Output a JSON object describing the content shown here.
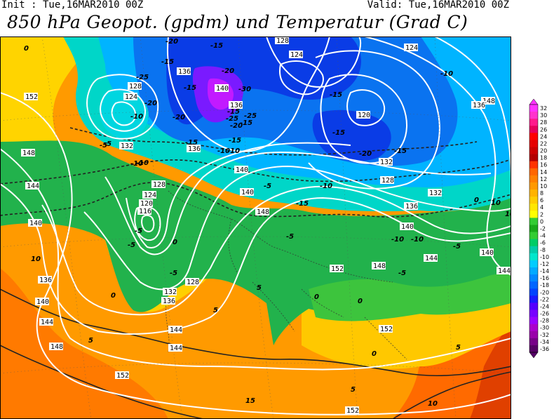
{
  "header": {
    "init": "Init : Tue,16MAR2010 00Z",
    "valid": "Valid: Tue,16MAR2010 00Z",
    "title": "850 hPa Geopot. (gpdm) und Temperatur (Grad C)"
  },
  "colorbar": {
    "levels": [
      32,
      30,
      28,
      26,
      24,
      22,
      20,
      18,
      16,
      14,
      12,
      10,
      8,
      6,
      4,
      2,
      0,
      -2,
      -4,
      -6,
      -8,
      -10,
      -12,
      -14,
      -16,
      -18,
      -20,
      -22,
      -24,
      -26,
      -28,
      -30,
      -32,
      -34,
      -36
    ],
    "labels": [
      "32",
      "30",
      "28",
      "26",
      "24",
      "22",
      "20",
      "18",
      "16",
      "14",
      "12",
      "10",
      "8",
      "6",
      "4",
      "2",
      "0",
      "-2",
      "-4",
      "-6",
      "-8",
      "-10",
      "-12",
      "-14",
      "-16",
      "-18",
      "-20",
      "-22",
      "-24",
      "-26",
      "-28",
      "-30",
      "-32",
      "-34",
      "-36"
    ],
    "colors": [
      "#ff33ff",
      "#ff33cc",
      "#ff1a8c",
      "#e6005c",
      "#ff0000",
      "#e60000",
      "#cc0000",
      "#b30000",
      "#ff3300",
      "#ff6600",
      "#ff8000",
      "#ff9900",
      "#ffb300",
      "#ffcc00",
      "#ffe600",
      "#ffff00",
      "#33cc33",
      "#1aaa1a",
      "#33cc33",
      "#00cc66",
      "#00ccaa",
      "#00e6cc",
      "#00ccff",
      "#00aaff",
      "#0088ff",
      "#0066ff",
      "#0044ff",
      "#1a1aff",
      "#5500ff",
      "#7700ff",
      "#9900ff",
      "#aa00cc",
      "#9900aa",
      "#770088",
      "#550066"
    ]
  },
  "map": {
    "geopotential_labels": [
      "152",
      "148",
      "144",
      "140",
      "136",
      "132",
      "128",
      "124",
      "120",
      "116",
      "152",
      "148",
      "144",
      "140",
      "136",
      "132",
      "128",
      "124",
      "128",
      "136",
      "140",
      "144",
      "136",
      "140",
      "140",
      "144",
      "148",
      "152",
      "136",
      "124",
      "128",
      "132",
      "136",
      "140",
      "144",
      "148",
      "152",
      "140",
      "144",
      "148",
      "152",
      "124",
      "120",
      "128",
      "132",
      "136"
    ],
    "temperature_labels": [
      "0",
      "-5",
      "-10",
      "-15",
      "-20",
      "-25",
      "-15",
      "-10",
      "-20",
      "-15",
      "-20",
      "-15",
      "-10",
      "-10",
      "-5",
      "-20",
      "-15",
      "-25",
      "-20",
      "-30",
      "-15",
      "-25",
      "-15",
      "-10",
      "-5",
      "-15",
      "-10",
      "-5",
      "-10",
      "-10",
      "-5",
      "-5",
      "0",
      "5",
      "10",
      "0",
      "5",
      "0",
      "0",
      "-5",
      "-5",
      "-5",
      "0",
      "5",
      "10",
      "15",
      "10",
      "5",
      "0",
      "5",
      "10",
      "-10",
      "-20",
      "-15",
      "-15",
      "-15"
    ]
  }
}
